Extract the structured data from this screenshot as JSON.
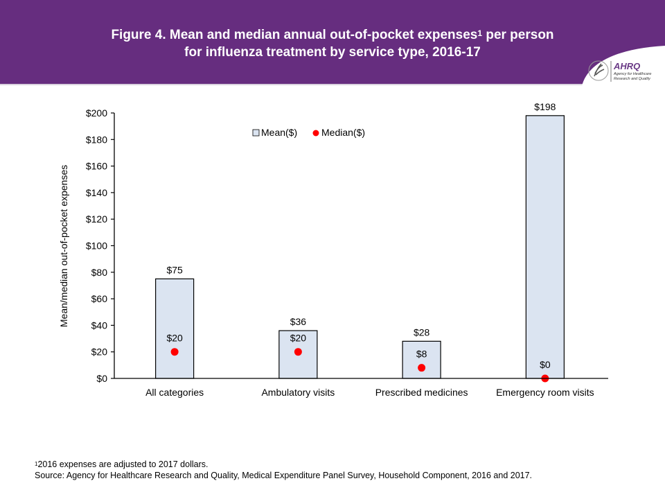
{
  "header": {
    "title_line1_pre": "Figure 4. Mean and median annual out-of-pocket expenses",
    "title_sup": "1",
    "title_line1_post": " per person",
    "title_line2": "for influenza treatment by service type, 2016-17",
    "logo": {
      "icon": "hhs-eagle-icon",
      "name": "AHRQ",
      "subtitle_line1": "Agency for Healthcare",
      "subtitle_line2": "Research and Quality"
    }
  },
  "colors": {
    "banner": "#662d7f",
    "bar_fill": "#dbe4f1",
    "bar_stroke": "#000000",
    "median_dot": "#ff0000"
  },
  "chart_data": {
    "type": "bar",
    "title": "Figure 4. Mean and median annual out-of-pocket expenses per person for influenza treatment by service type, 2016-17",
    "xlabel": "",
    "ylabel": "Mean/median out-of-pocket expenses",
    "categories": [
      "All categories",
      "Ambulatory visits",
      "Prescribed medicines",
      "Emergency room visits"
    ],
    "ylim": [
      0,
      200
    ],
    "yticks": [
      0,
      20,
      40,
      60,
      80,
      100,
      120,
      140,
      160,
      180,
      200
    ],
    "ytick_labels": [
      "$0",
      "$20",
      "$40",
      "$60",
      "$80",
      "$100",
      "$120",
      "$140",
      "$160",
      "$180",
      "$200"
    ],
    "grid": false,
    "legend": {
      "placement": "top-center",
      "entries": [
        "Mean($)",
        "Median($)"
      ]
    },
    "series": [
      {
        "name": "Mean($)",
        "kind": "bar",
        "values": [
          75,
          36,
          28,
          198
        ],
        "labels": [
          "$75",
          "$36",
          "$28",
          "$198"
        ]
      },
      {
        "name": "Median($)",
        "kind": "point",
        "values": [
          20,
          20,
          8,
          0
        ],
        "labels": [
          "$20",
          "$20",
          "$8",
          "$0"
        ]
      }
    ]
  },
  "footnotes": {
    "note_sup": "1",
    "note": "2016 expenses are adjusted to 2017 dollars.",
    "source": "Source: Agency for Healthcare Research and Quality, Medical Expenditure Panel Survey, Household Component, 2016 and 2017."
  }
}
